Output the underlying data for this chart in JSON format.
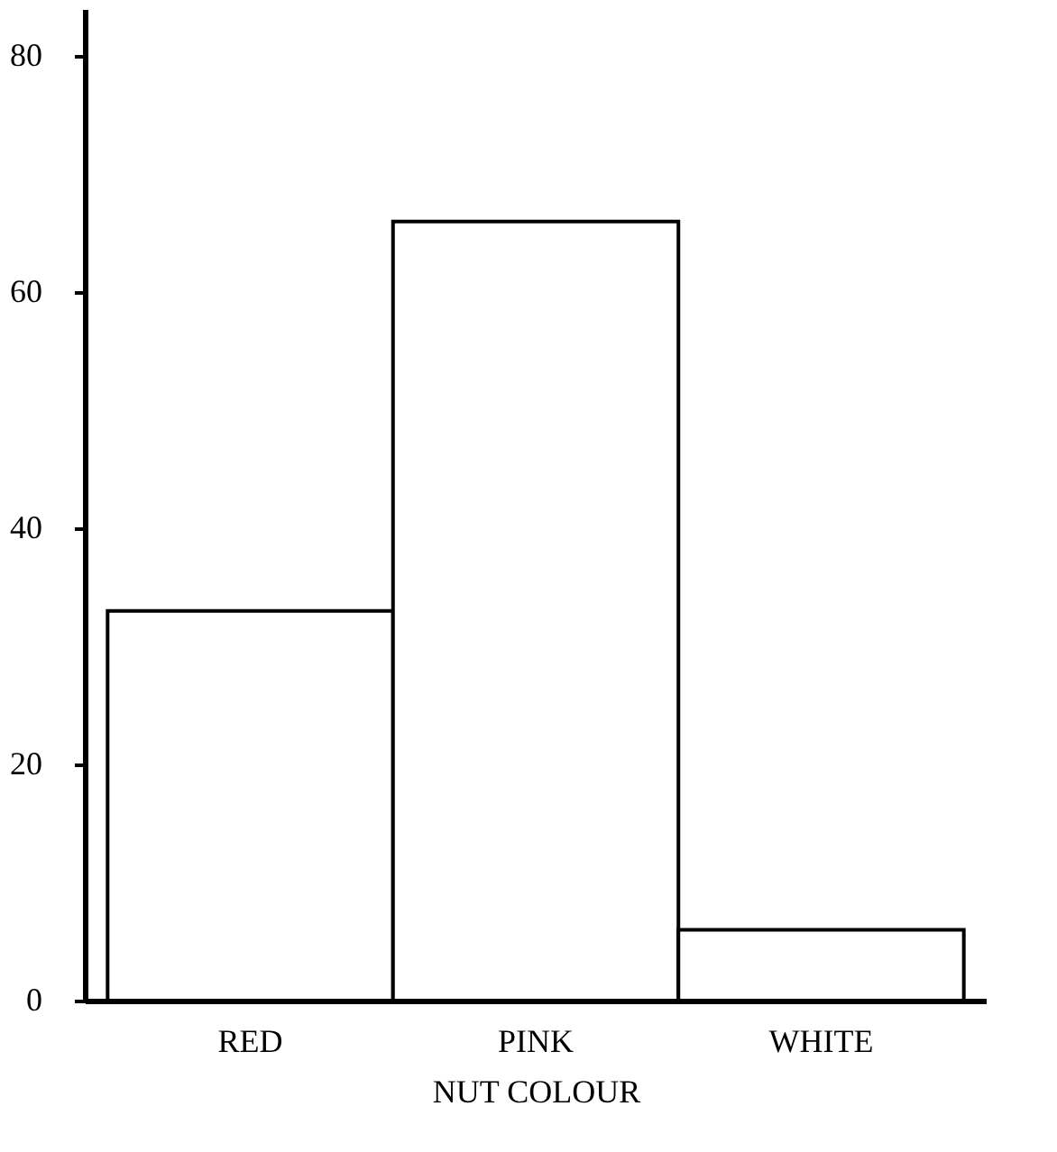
{
  "chart_data": {
    "type": "bar",
    "xlabel": "NUT COLOUR",
    "categories": [
      "RED",
      "PINK",
      "WHITE"
    ],
    "values": [
      33,
      66,
      6
    ],
    "color": "#ffffff",
    "ylim": [
      0,
      84
    ],
    "yticks": [
      0,
      20,
      40,
      60,
      80
    ],
    "grid": false
  }
}
